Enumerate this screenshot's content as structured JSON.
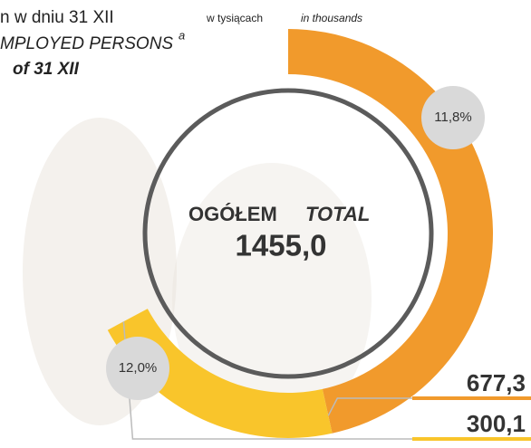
{
  "chart_data": {
    "type": "donut",
    "title_lines": [
      "n w dniu 31 XII",
      "MPLOYED PERSONS",
      "of 31 XII"
    ],
    "title_superscript": "a",
    "unit_pl": "w tysiącach",
    "unit_en": "in thousands",
    "total_label_pl": "OGÓŁEM",
    "total_label_en": "TOTAL",
    "total": 1455.0,
    "total_label": "1455,0",
    "series": [
      {
        "color": "#f19a2c",
        "values": [
          677.3
        ],
        "value_labels": [
          "677,3"
        ],
        "share": 11.8,
        "share_label": "11,8%"
      },
      {
        "color": "#f9c52b",
        "values": [
          300.1
        ],
        "value_labels": [
          "300,1"
        ],
        "share": 12.0,
        "share_label": "12,0%"
      }
    ]
  }
}
